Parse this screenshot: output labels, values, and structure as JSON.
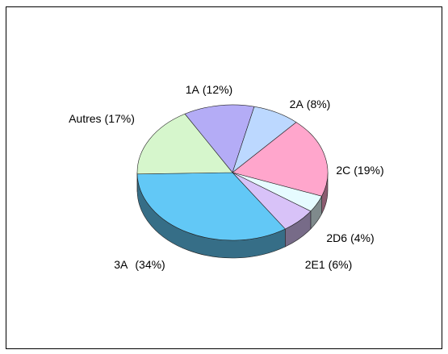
{
  "chart_data": {
    "type": "pie",
    "categories": [
      "1A",
      "2A",
      "2C",
      "2D6",
      "2E1",
      "3A",
      "Autres"
    ],
    "values": [
      12,
      8,
      19,
      4,
      6,
      34,
      17
    ],
    "value_labels": [
      "(12%)",
      "(8%)",
      "(19%)",
      "(4%)",
      "(6%)",
      "(34%)",
      "(17%)"
    ],
    "colors": [
      "#b4acf6",
      "#bcd8ff",
      "#ffa6cc",
      "#e6fbff",
      "#d8c2f8",
      "#62c8f6",
      "#d6f6cc"
    ]
  }
}
